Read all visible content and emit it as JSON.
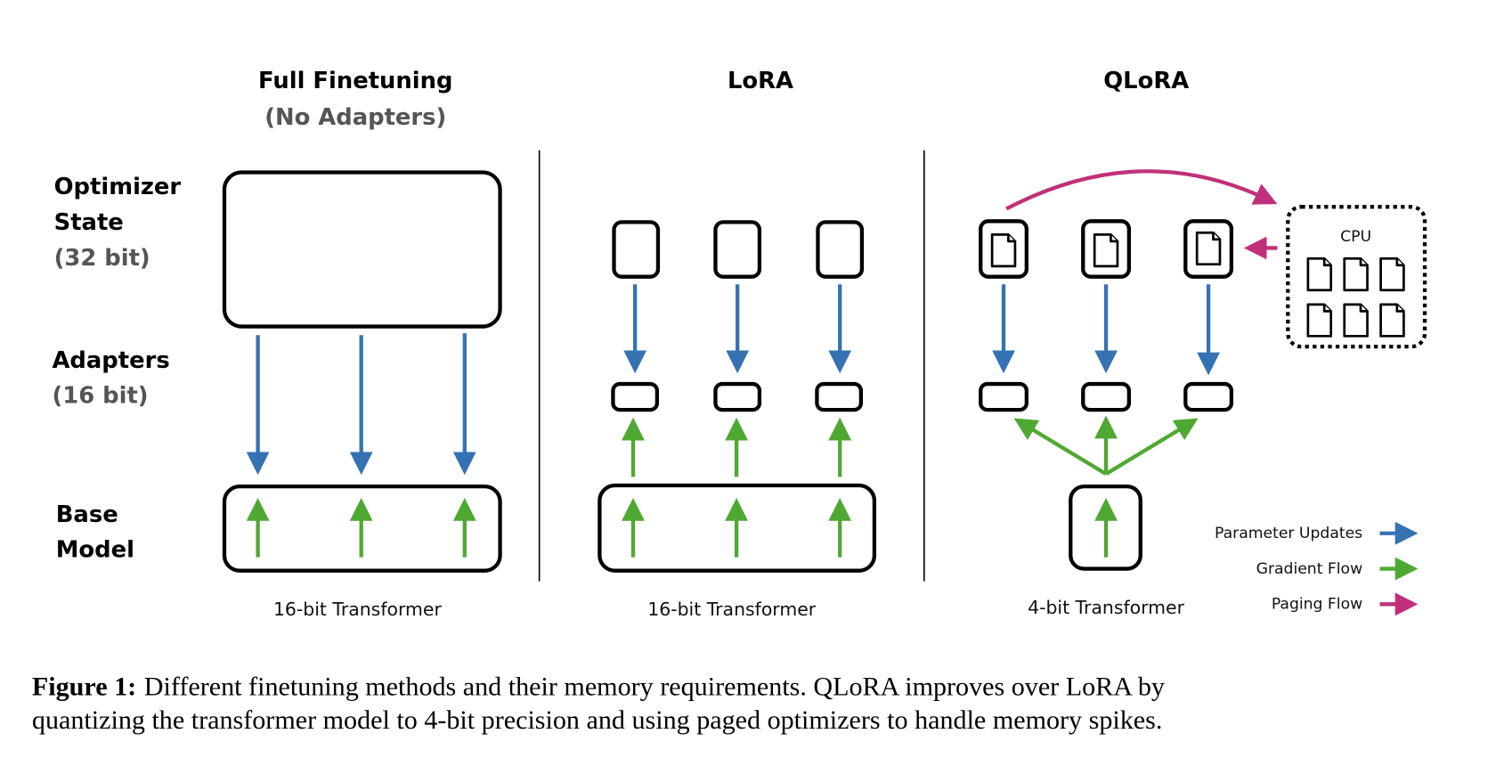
{
  "columns": {
    "full": {
      "title": "Full Finetuning",
      "subtitle": "(No Adapters)",
      "base_label": "16-bit Transformer"
    },
    "lora": {
      "title": "LoRA",
      "base_label": "16-bit Transformer"
    },
    "qlora": {
      "title": "QLoRA",
      "base_label": "4-bit Transformer",
      "cpu_label": "CPU"
    }
  },
  "rows": {
    "optimizer": {
      "line1": "Optimizer",
      "line2": "State",
      "bits": "(32 bit)"
    },
    "adapters": {
      "line1": "Adapters",
      "bits": "(16 bit)"
    },
    "base": {
      "line1": "Base",
      "line2": "Model"
    }
  },
  "legend": [
    {
      "label": "Parameter Updates",
      "color": "#3572b3"
    },
    {
      "label": "Gradient Flow",
      "color": "#4fa832"
    },
    {
      "label": "Paging Flow",
      "color": "#c0307a"
    }
  ],
  "caption": {
    "prefix": "Figure 1:",
    "line1": "Different finetuning methods and their memory requirements. QLoRA improves over LoRA by",
    "line2": "quantizing the transformer model to 4-bit precision and using paged optimizers to handle memory spikes."
  }
}
